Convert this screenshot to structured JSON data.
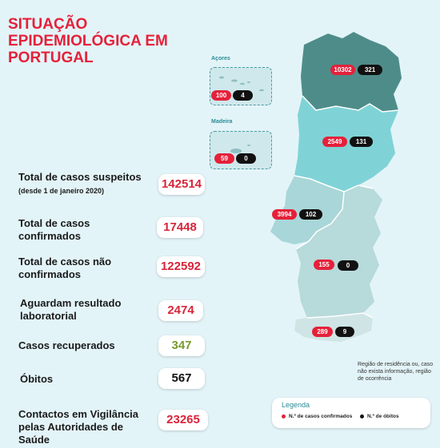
{
  "title": "SITUAÇÃO EPIDEMIOLÓGICA EM PORTUGAL",
  "stats": [
    {
      "label": "Total de casos suspeitos",
      "note": "(desde 1 de janeiro 2020)",
      "value": "142514"
    },
    {
      "label": "Total de casos confirmados",
      "value": "17448"
    },
    {
      "label": "Total de casos não confirmados",
      "value": "122592"
    },
    {
      "label": "Aguardam resultado laboratorial",
      "value": "2474"
    },
    {
      "label": "Casos recuperados",
      "value": "347"
    },
    {
      "label": "Óbitos",
      "value": "567"
    },
    {
      "label": "Contactos em Vigilância pelas Autoridades de Saúde",
      "value": "23265"
    }
  ],
  "regions": {
    "norte": {
      "cases": "10302",
      "deaths": "321"
    },
    "centro": {
      "cases": "2549",
      "deaths": "131"
    },
    "lisboa": {
      "cases": "3994",
      "deaths": "102"
    },
    "alentejo": {
      "cases": "155",
      "deaths": "0"
    },
    "algarve": {
      "cases": "289",
      "deaths": "9"
    },
    "acores": {
      "label": "Açores",
      "cases": "100",
      "deaths": "4"
    },
    "madeira": {
      "label": "Madeira",
      "cases": "59",
      "deaths": "0"
    }
  },
  "note": "Região de residência ou, caso não exista informação, região de ocorrência",
  "legend": {
    "title": "Legenda",
    "cases_label": "N.º de casos confirmados",
    "deaths_label": "N.º de óbitos"
  },
  "colors": {
    "norte": "#4e8c8a",
    "centro": "#7fd3d6",
    "lisboa": "#a9d6d8",
    "alentejo": "#b7dadb",
    "algarve": "#cfe4e5",
    "cases": "#e5213a",
    "deaths": "#111111",
    "title": "#e5213a"
  }
}
